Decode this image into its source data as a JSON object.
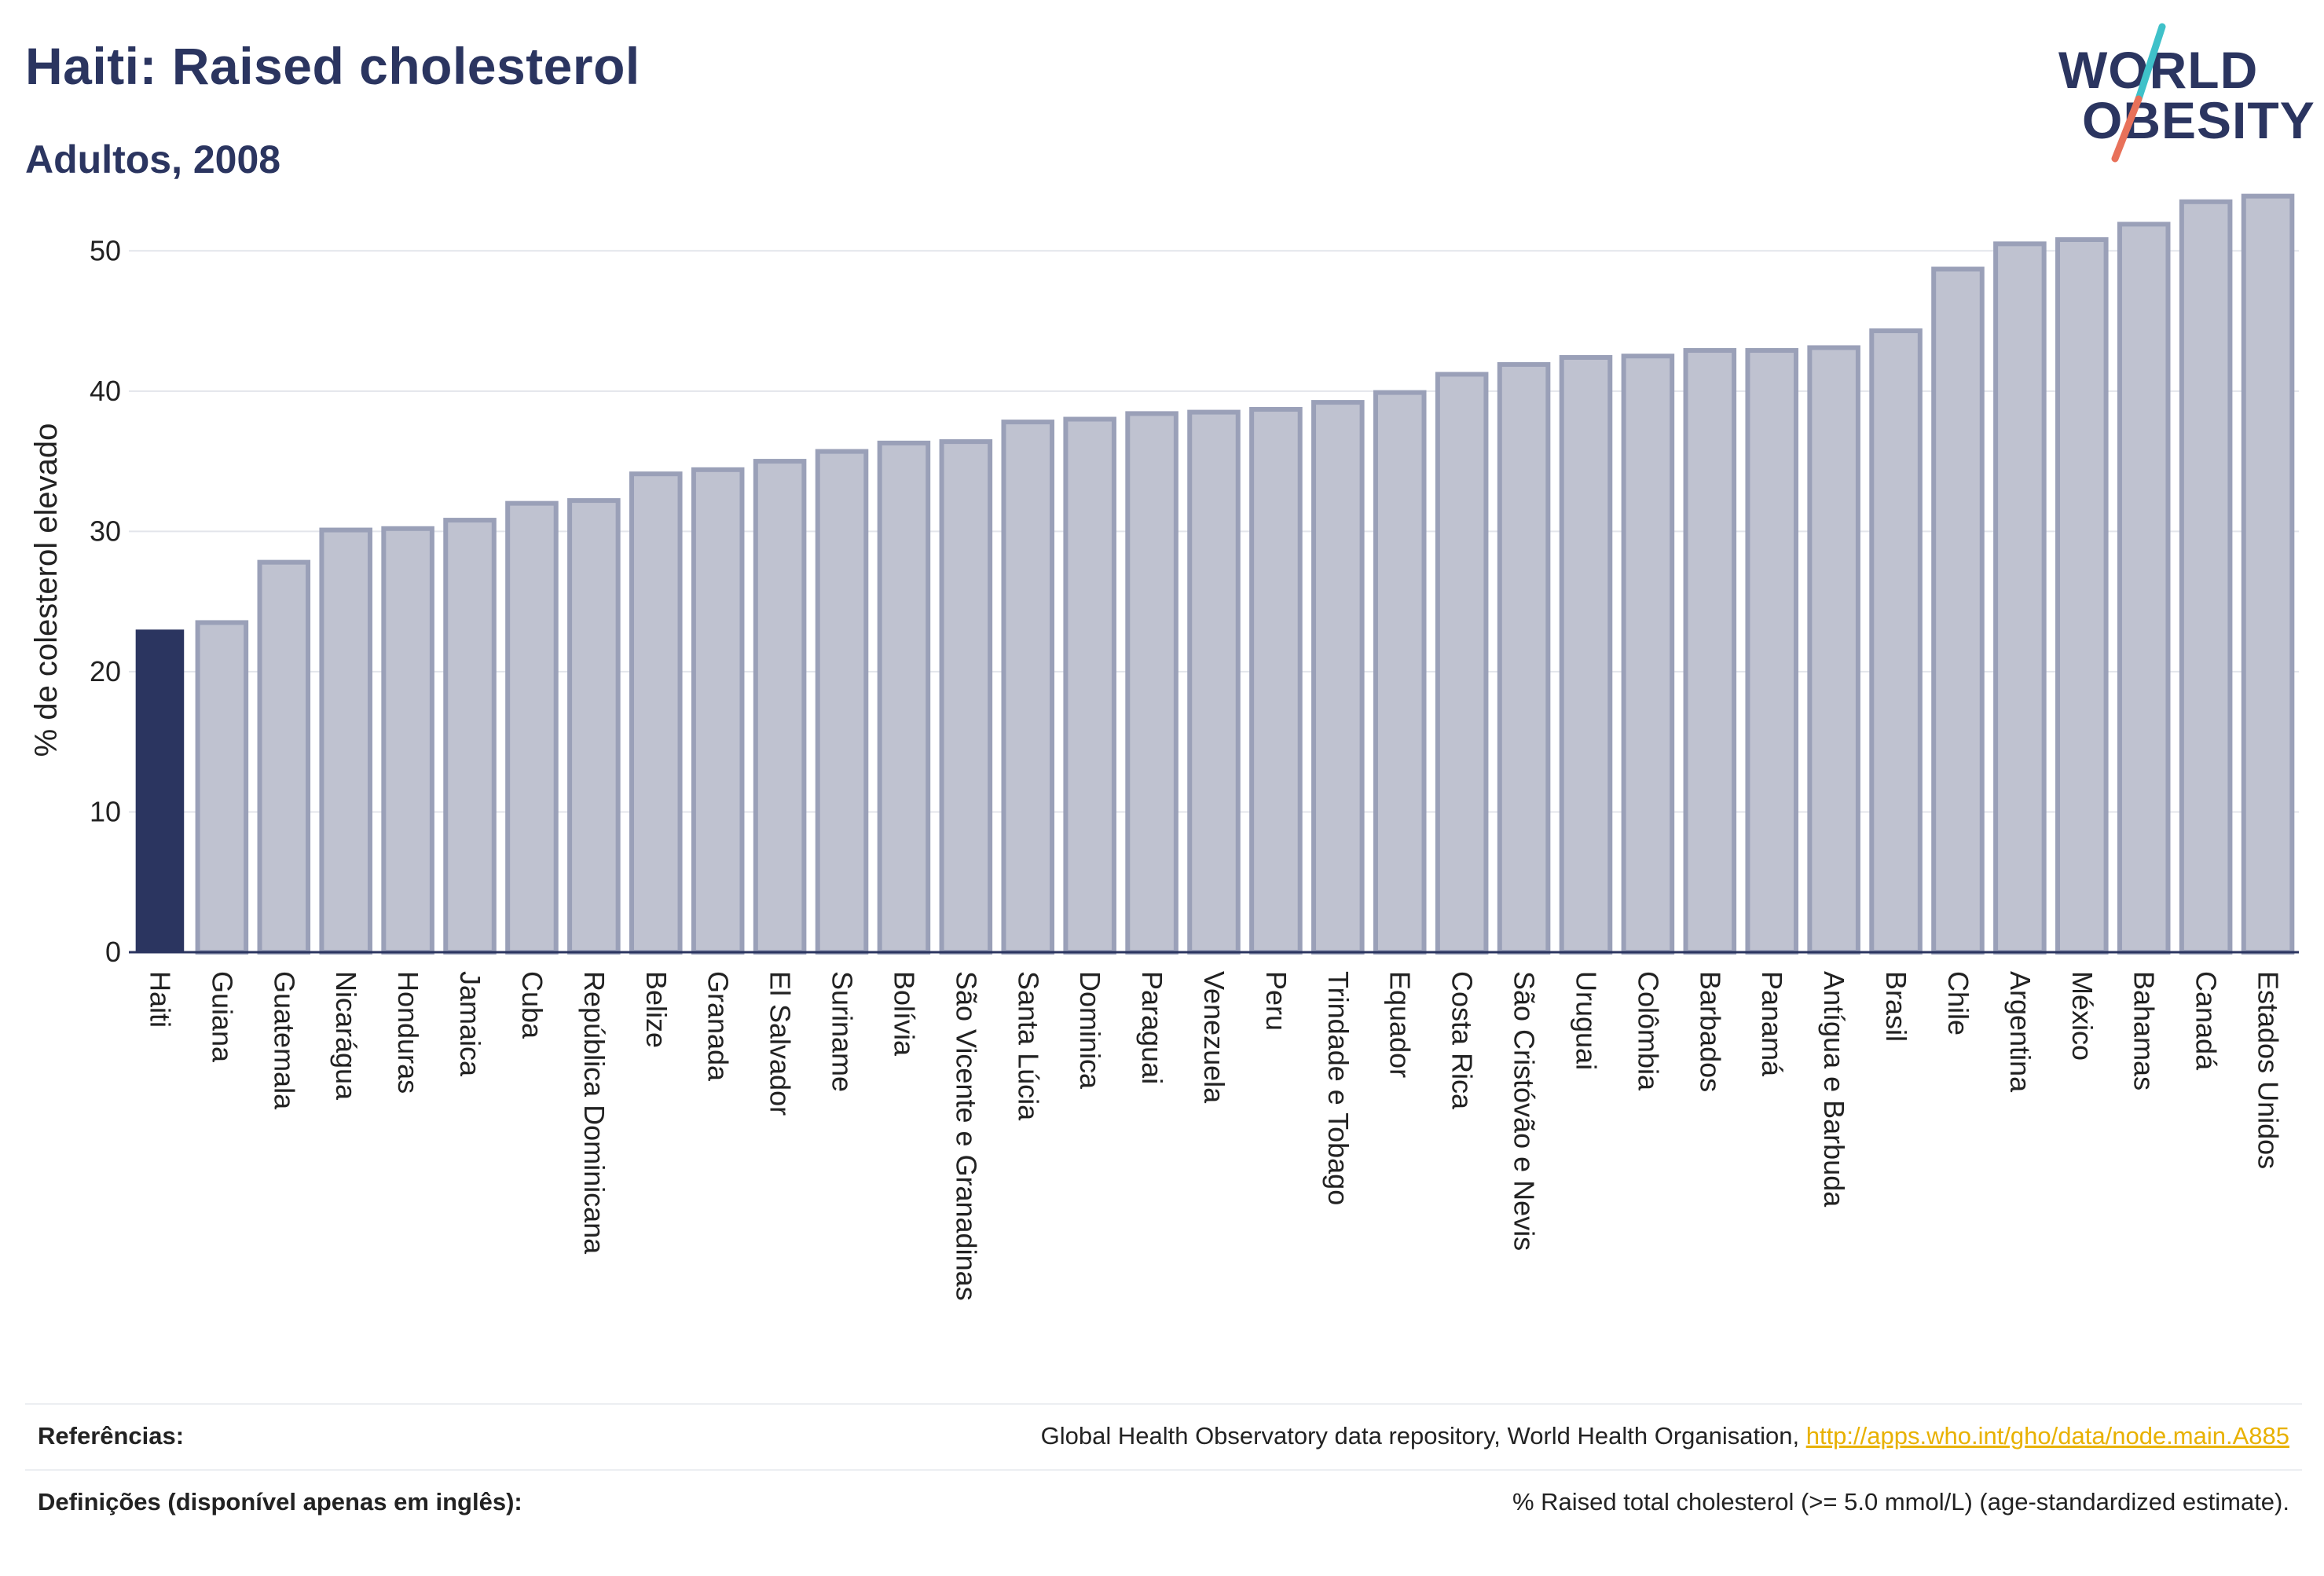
{
  "header": {
    "title": "Haiti: Raised cholesterol",
    "subtitle": "Adultos, 2008"
  },
  "logo": {
    "line1": "WORLD",
    "line2": "OBESITY",
    "slash_color_top": "#3fc1c9",
    "slash_color_bottom": "#e8715a"
  },
  "colors": {
    "highlight_bar": "#2b3560",
    "bar_fill": "#bfc2d0",
    "bar_stroke": "#9aa0b8",
    "axis": "#2b3560",
    "grid": "#e3e5eb"
  },
  "chart_data": {
    "type": "bar",
    "categories": [
      "Haiti",
      "Guiana",
      "Guatemala",
      "Nicarágua",
      "Honduras",
      "Jamaica",
      "Cuba",
      "República Dominicana",
      "Belize",
      "Granada",
      "El Salvador",
      "Suriname",
      "Bolívia",
      "São Vicente e Granadinas",
      "Santa Lúcia",
      "Dominica",
      "Paraguai",
      "Venezuela",
      "Peru",
      "Trindade e Tobago",
      "Equador",
      "Costa Rica",
      "São Cristóvão e Nevis",
      "Uruguai",
      "Colômbia",
      "Barbados",
      "Panamá",
      "Antígua e Barbuda",
      "Brasil",
      "Chile",
      "Argentina",
      "México",
      "Bahamas",
      "Canadá",
      "Estados Unidos"
    ],
    "values": [
      23.0,
      23.5,
      27.8,
      30.1,
      30.2,
      30.8,
      32.0,
      32.2,
      34.1,
      34.4,
      35.0,
      35.7,
      36.3,
      36.4,
      37.8,
      38.0,
      38.4,
      38.5,
      38.7,
      39.2,
      39.9,
      41.2,
      41.9,
      42.4,
      42.5,
      42.9,
      42.9,
      43.1,
      44.3,
      48.7,
      50.5,
      50.8,
      51.9,
      53.5,
      53.9
    ],
    "highlight": "Haiti",
    "ylabel": "% de colesterol elevado",
    "xlabel": "",
    "ylim": [
      0,
      55
    ],
    "yticks": [
      0,
      10,
      20,
      30,
      40,
      50
    ],
    "grid": true
  },
  "footer": {
    "references_label": "Referências:",
    "references_text": "Global Health Observatory data repository, World Health Organisation, ",
    "references_link": "http://apps.who.int/gho/data/node.main.A885",
    "definitions_label": "Definições (disponível apenas em inglês):",
    "definitions_text": "% Raised total cholesterol (>= 5.0 mmol/L) (age-standardized estimate)."
  }
}
